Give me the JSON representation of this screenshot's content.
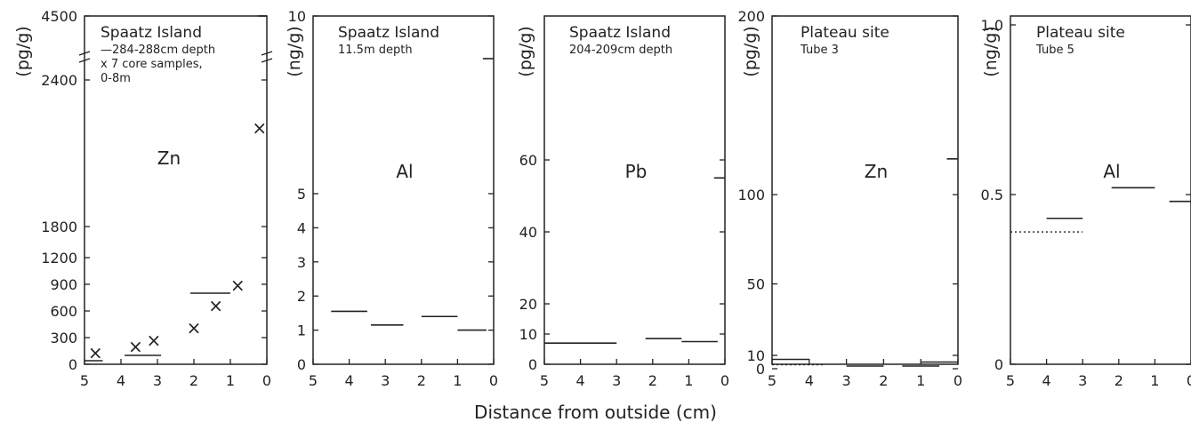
{
  "figure": {
    "xlabel": "Distance from outside (cm)"
  },
  "chart_data": [
    {
      "type": "scatter",
      "ylabel": "(pg/g)",
      "element": "Zn",
      "title_lines": [
        "Spaatz Island",
        "—284-288cm depth",
        "x 7 core samples,",
        "0-8m"
      ],
      "xlim": [
        5,
        0
      ],
      "ylim": [
        0,
        4500
      ],
      "x_ticks": [
        "5",
        "4",
        "3",
        "2",
        "1",
        "0"
      ],
      "y_ticks": [
        "0",
        "300",
        "600",
        "900",
        "1200",
        "1800",
        "2400",
        "4500"
      ],
      "series": [
        {
          "name": "284-288cm depth",
          "kind": "segments",
          "segments": [
            {
              "x0": 5,
              "x1": 4.5,
              "y": 40
            },
            {
              "x0": 3.9,
              "x1": 2.9,
              "y": 100
            },
            {
              "x0": 2.1,
              "x1": 1.0,
              "y": 800
            },
            {
              "x0": 0.25,
              "x1": 0,
              "y": 4500
            }
          ]
        },
        {
          "name": "7 core samples, 0-8m",
          "kind": "x-markers",
          "points": [
            {
              "x": 4.7,
              "y": 120
            },
            {
              "x": 3.6,
              "y": 190
            },
            {
              "x": 3.1,
              "y": 260
            },
            {
              "x": 2.0,
              "y": 400
            },
            {
              "x": 1.4,
              "y": 650
            },
            {
              "x": 0.8,
              "y": 880
            },
            {
              "x": 0.2,
              "y": 2200
            }
          ]
        }
      ]
    },
    {
      "type": "line",
      "ylabel": "(ng/g)",
      "element": "Al",
      "title_lines": [
        "Spaatz Island",
        "11.5m depth"
      ],
      "xlim": [
        5,
        0
      ],
      "ylim": [
        0,
        10
      ],
      "x_ticks": [
        "5",
        "4",
        "3",
        "2",
        "1",
        "0"
      ],
      "y_ticks": [
        "0",
        "1",
        "2",
        "3",
        "4",
        "5",
        "10"
      ],
      "series": [
        {
          "kind": "segments",
          "segments": [
            {
              "x0": 4.5,
              "x1": 3.5,
              "y": 1.55
            },
            {
              "x0": 3.4,
              "x1": 2.5,
              "y": 1.15
            },
            {
              "x0": 2.0,
              "x1": 1.0,
              "y": 1.4
            },
            {
              "x0": 1.0,
              "x1": 0.2,
              "y": 1.0
            },
            {
              "x0": 0.3,
              "x1": 0,
              "y": 8.8
            }
          ]
        }
      ]
    },
    {
      "type": "line",
      "ylabel": "(pg/g)",
      "element": "Pb",
      "title_lines": [
        "Spaatz Island",
        "204-209cm depth"
      ],
      "xlim": [
        5,
        0
      ],
      "ylim": [
        0,
        100
      ],
      "x_ticks": [
        "5",
        "4",
        "3",
        "2",
        "1",
        "0"
      ],
      "y_ticks": [
        "0",
        "10",
        "20",
        "40",
        "60"
      ],
      "series": [
        {
          "kind": "segments",
          "segments": [
            {
              "x0": 5,
              "x1": 3,
              "y": 7
            },
            {
              "x0": 2.2,
              "x1": 1.2,
              "y": 8.5
            },
            {
              "x0": 1.2,
              "x1": 0.2,
              "y": 7.5
            },
            {
              "x0": 0.3,
              "x1": 0,
              "y": 55
            }
          ]
        }
      ]
    },
    {
      "type": "line",
      "ylabel": "(pg/g)",
      "element": "Zn",
      "title_lines": [
        "Plateau site",
        "Tube 3"
      ],
      "xlim": [
        5,
        0
      ],
      "ylim": [
        0,
        200
      ],
      "x_ticks": [
        "5",
        "4",
        "3",
        "2",
        "1",
        "0"
      ],
      "y_ticks": [
        "0",
        "10",
        "50",
        "100",
        "200"
      ],
      "series": [
        {
          "kind": "segments",
          "segments": [
            {
              "x0": 5,
              "x1": 4,
              "y": 7
            },
            {
              "x0": 3,
              "x1": 2,
              "y": 2
            },
            {
              "x0": 1.5,
              "x1": 0.5,
              "y": 2
            },
            {
              "x0": 1,
              "x1": 0,
              "y": 5
            },
            {
              "x0": 0.3,
              "x1": 0,
              "y": 120
            }
          ]
        },
        {
          "kind": "dotted-segments",
          "segments": [
            {
              "x0": 5,
              "x1": 3.6,
              "y": 3
            }
          ]
        }
      ]
    },
    {
      "type": "line",
      "ylabel": "(ng/g)",
      "element": "Al",
      "title_lines": [
        "Plateau site",
        "Tube 5"
      ],
      "xlim": [
        5,
        0
      ],
      "ylim": [
        0,
        1.0
      ],
      "x_ticks": [
        "5",
        "4",
        "3",
        "2",
        "1",
        "0"
      ],
      "y_ticks": [
        "0",
        "0.5",
        "1.0"
      ],
      "series": [
        {
          "kind": "segments",
          "segments": [
            {
              "x0": 4,
              "x1": 3,
              "y": 0.43
            },
            {
              "x0": 2.2,
              "x1": 1.0,
              "y": 0.52
            },
            {
              "x0": 0.6,
              "x1": 0,
              "y": 0.48
            }
          ]
        },
        {
          "kind": "dotted-segments",
          "segments": [
            {
              "x0": 5,
              "x1": 3,
              "y": 0.39
            }
          ]
        }
      ]
    }
  ]
}
